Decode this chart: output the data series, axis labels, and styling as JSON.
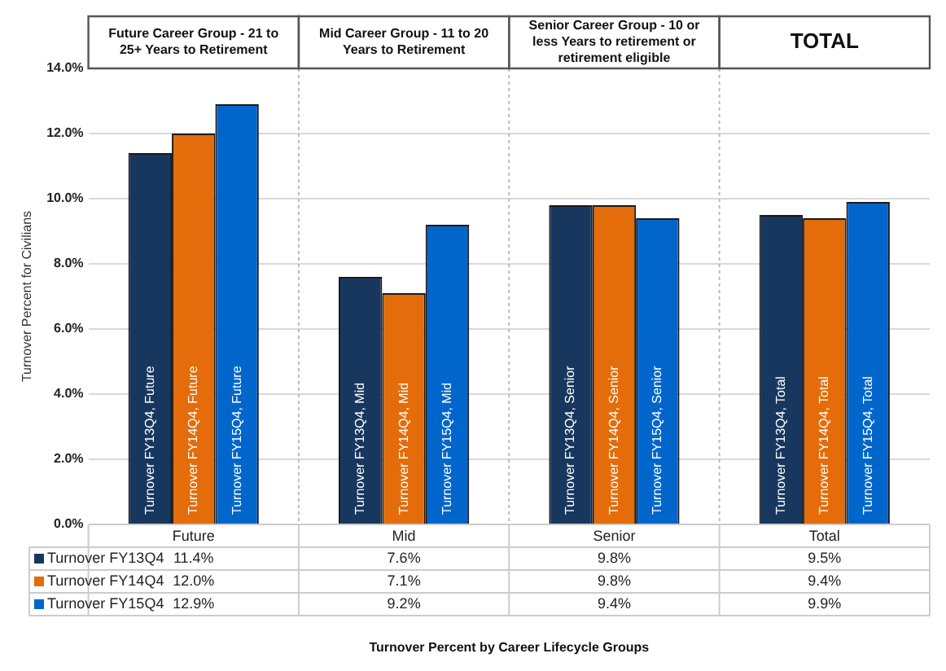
{
  "chart_data": {
    "type": "bar",
    "title": "Turnover Percent by Career Lifecycle Groups",
    "ylabel": "Turnover Percent for Civilians",
    "categories": [
      "Future",
      "Mid",
      "Senior",
      "Total"
    ],
    "series": [
      {
        "name": "Turnover FY13Q4",
        "color": "#17375e",
        "values": [
          11.4,
          7.6,
          9.8,
          9.5
        ],
        "value_labels": [
          "11.4%",
          "7.6%",
          "9.8%",
          "9.5%"
        ]
      },
      {
        "name": "Turnover FY14Q4",
        "color": "#e46c0a",
        "values": [
          12.0,
          7.1,
          9.8,
          9.4
        ],
        "value_labels": [
          "12.0%",
          "7.1%",
          "9.8%",
          "9.4%"
        ]
      },
      {
        "name": "Turnover FY15Q4",
        "color": "#0066cc",
        "values": [
          12.9,
          9.2,
          9.4,
          9.9
        ],
        "value_labels": [
          "12.9%",
          "9.2%",
          "9.4%",
          "9.9%"
        ]
      }
    ],
    "annotations": [
      "Future Career Group - 21 to 25+ Years to Retirement",
      "Mid Career Group - 11 to 20 Years to Retirement",
      "Senior Career Group - 10 or less Years to retirement or retirement eligible",
      "TOTAL",
      {
        "text": "Turnover FY13Q4, Future",
        "x": "Future",
        "y": 0
      },
      {
        "text": "Turnover FY14Q4, Future",
        "x": "Future",
        "y": 0
      },
      {
        "text": "Turnover FY15Q4, Future",
        "x": "Future",
        "y": 0
      },
      {
        "text": "Turnover FY13Q4, Mid",
        "x": "Mid",
        "y": 0
      },
      {
        "text": "Turnover FY14Q4, Mid",
        "x": "Mid",
        "y": 0
      },
      {
        "text": "Turnover FY15Q4, Mid",
        "x": "Mid",
        "y": 0
      },
      {
        "text": "Turnover FY13Q4, Senior",
        "x": "Senior",
        "y": 0
      },
      {
        "text": "Turnover FY14Q4, Senior",
        "x": "Senior",
        "y": 0
      },
      {
        "text": "Turnover FY15Q4, Senior",
        "x": "Senior",
        "y": 0
      },
      {
        "text": "Turnover FY13Q4, Total",
        "x": "Total",
        "y": 0
      },
      {
        "text": "Turnover FY14Q4, Total",
        "x": "Total",
        "y": 0
      },
      {
        "text": "Turnover FY15Q4, Total",
        "x": "Total",
        "y": 0
      }
    ],
    "ylim": [
      0,
      14
    ],
    "yticks": [
      {
        "value": 0,
        "label": "0.0%"
      },
      {
        "value": 2,
        "label": "2.0%"
      },
      {
        "value": 4,
        "label": "4.0%"
      },
      {
        "value": 6,
        "label": "6.0%"
      },
      {
        "value": 8,
        "label": "8.0%"
      },
      {
        "value": 10,
        "label": "10.0%"
      },
      {
        "value": 12,
        "label": "12.0%"
      },
      {
        "value": 14,
        "label": "14.0%"
      }
    ],
    "grid": true,
    "legend": "bottom"
  }
}
